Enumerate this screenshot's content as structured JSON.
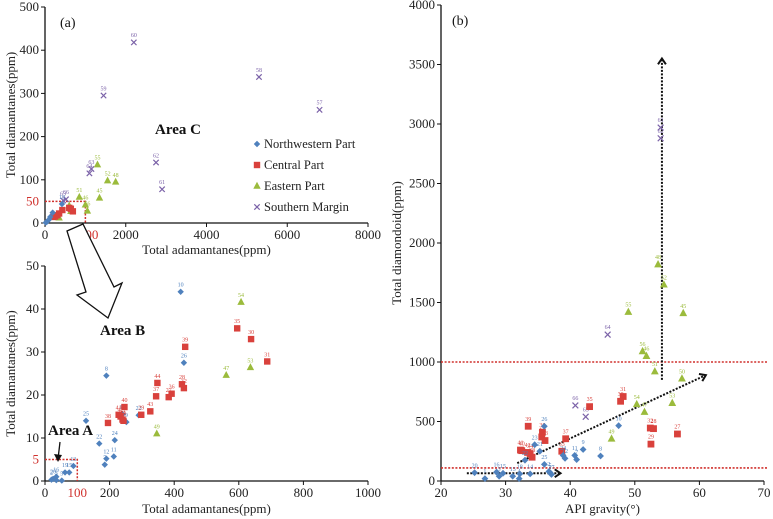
{
  "colors": {
    "northwestern": "#4f81bd",
    "central": "#d9413c",
    "eastern": "#9bbb3c",
    "southern": "#7b62a8",
    "redline": "#d0312d",
    "black": "#111111"
  },
  "legend": [
    {
      "key": "northwestern",
      "label": "Northwestern Part",
      "marker": "diamond"
    },
    {
      "key": "central",
      "label": "Central Part",
      "marker": "square"
    },
    {
      "key": "eastern",
      "label": "Eastern Part",
      "marker": "triangle"
    },
    {
      "key": "southern",
      "label": "Southern Margin",
      "marker": "cross"
    }
  ],
  "chart_data": [
    {
      "id": "a-top",
      "type": "scatter",
      "panel_label": "(a)",
      "annotation": "Area C",
      "xlabel": "Total adamantanes(ppm)",
      "ylabel": "Total diamantanes(ppm)",
      "xlim": [
        0,
        8000
      ],
      "ylim": [
        0,
        500
      ],
      "xticks": [
        0,
        2000,
        4000,
        6000,
        8000
      ],
      "yticks": [
        0,
        100,
        200,
        300,
        400,
        500
      ],
      "highlight_box": {
        "x": 1000,
        "y": 50,
        "x_label": "1000",
        "y_label": "50"
      },
      "points": [
        {
          "s": "southern",
          "x": 2200,
          "y": 418,
          "l": "60"
        },
        {
          "s": "southern",
          "x": 1450,
          "y": 295,
          "l": "59"
        },
        {
          "s": "southern",
          "x": 5300,
          "y": 338,
          "l": "58"
        },
        {
          "s": "southern",
          "x": 6800,
          "y": 262,
          "l": "57"
        },
        {
          "s": "southern",
          "x": 2750,
          "y": 140,
          "l": "62"
        },
        {
          "s": "southern",
          "x": 2900,
          "y": 78,
          "l": "61"
        },
        {
          "s": "southern",
          "x": 1150,
          "y": 125,
          "l": "63"
        },
        {
          "s": "southern",
          "x": 1100,
          "y": 115,
          "l": "64"
        },
        {
          "s": "southern",
          "x": 520,
          "y": 55,
          "l": "66"
        },
        {
          "s": "southern",
          "x": 450,
          "y": 52,
          "l": "65"
        },
        {
          "s": "eastern",
          "x": 1300,
          "y": 135,
          "l": "55"
        },
        {
          "s": "eastern",
          "x": 1550,
          "y": 98,
          "l": "52"
        },
        {
          "s": "eastern",
          "x": 1750,
          "y": 95,
          "l": "48"
        },
        {
          "s": "eastern",
          "x": 850,
          "y": 60,
          "l": "51"
        },
        {
          "s": "eastern",
          "x": 1350,
          "y": 58,
          "l": "45"
        },
        {
          "s": "eastern",
          "x": 1000,
          "y": 42,
          "l": "46"
        },
        {
          "s": "eastern",
          "x": 1050,
          "y": 28,
          "l": "56"
        },
        {
          "s": "eastern",
          "x": 600,
          "y": 40,
          "l": ""
        },
        {
          "s": "eastern",
          "x": 640,
          "y": 27,
          "l": ""
        },
        {
          "s": "eastern",
          "x": 350,
          "y": 12,
          "l": ""
        },
        {
          "s": "central",
          "x": 600,
          "y": 35,
          "l": ""
        },
        {
          "s": "central",
          "x": 640,
          "y": 33,
          "l": ""
        },
        {
          "s": "central",
          "x": 430,
          "y": 30,
          "l": ""
        },
        {
          "s": "central",
          "x": 350,
          "y": 22,
          "l": ""
        },
        {
          "s": "central",
          "x": 300,
          "y": 18,
          "l": ""
        },
        {
          "s": "central",
          "x": 250,
          "y": 15,
          "l": ""
        },
        {
          "s": "central",
          "x": 690,
          "y": 27,
          "l": ""
        },
        {
          "s": "central",
          "x": 200,
          "y": 14,
          "l": ""
        },
        {
          "s": "northwestern",
          "x": 420,
          "y": 44,
          "l": "10"
        },
        {
          "s": "northwestern",
          "x": 190,
          "y": 24,
          "l": ""
        },
        {
          "s": "northwestern",
          "x": 130,
          "y": 14,
          "l": ""
        },
        {
          "s": "northwestern",
          "x": 100,
          "y": 8,
          "l": ""
        },
        {
          "s": "northwestern",
          "x": 50,
          "y": 3,
          "l": ""
        },
        {
          "s": "northwestern",
          "x": 20,
          "y": 1,
          "l": ""
        }
      ]
    },
    {
      "id": "a-bottom",
      "type": "scatter",
      "annotations": [
        "Area B",
        "Area A"
      ],
      "xlabel": "Total adamantanes(ppm)",
      "ylabel": "Total diamantanes(ppm)",
      "xlim": [
        0,
        1000
      ],
      "ylim": [
        0,
        50
      ],
      "xticks": [
        0,
        200,
        400,
        600,
        800,
        1000
      ],
      "yticks": [
        0,
        10,
        20,
        30,
        40,
        50
      ],
      "highlight_box": {
        "x": 100,
        "y": 5,
        "x_label": "100",
        "y_label": "5"
      },
      "points": [
        {
          "s": "northwestern",
          "x": 420,
          "y": 44,
          "l": "10"
        },
        {
          "s": "northwestern",
          "x": 190,
          "y": 24.5,
          "l": "8"
        },
        {
          "s": "northwestern",
          "x": 430,
          "y": 27.5,
          "l": "26"
        },
        {
          "s": "northwestern",
          "x": 127,
          "y": 14,
          "l": "25"
        },
        {
          "s": "northwestern",
          "x": 290,
          "y": 15.3,
          "l": "23"
        },
        {
          "s": "northwestern",
          "x": 240,
          "y": 15.5,
          "l": "17"
        },
        {
          "s": "northwestern",
          "x": 252,
          "y": 13.7,
          "l": "9"
        },
        {
          "s": "northwestern",
          "x": 168,
          "y": 8.7,
          "l": "22"
        },
        {
          "s": "northwestern",
          "x": 216,
          "y": 9.5,
          "l": "24"
        },
        {
          "s": "northwestern",
          "x": 190,
          "y": 5.2,
          "l": "12"
        },
        {
          "s": "northwestern",
          "x": 213,
          "y": 5.7,
          "l": "11"
        },
        {
          "s": "northwestern",
          "x": 185,
          "y": 3.8,
          "l": "7"
        },
        {
          "s": "northwestern",
          "x": 88,
          "y": 3.5,
          "l": "13"
        },
        {
          "s": "northwestern",
          "x": 62,
          "y": 2,
          "l": "19"
        },
        {
          "s": "northwestern",
          "x": 75,
          "y": 2,
          "l": "15"
        },
        {
          "s": "northwestern",
          "x": 35,
          "y": 1,
          "l": "16"
        },
        {
          "s": "northwestern",
          "x": 25,
          "y": 0.5,
          "l": "20"
        },
        {
          "s": "northwestern",
          "x": 20,
          "y": 0.3,
          "l": "2"
        },
        {
          "s": "northwestern",
          "x": 35,
          "y": 0.2,
          "l": "3"
        },
        {
          "s": "northwestern",
          "x": 52,
          "y": 0.1,
          "l": "5"
        },
        {
          "s": "central",
          "x": 595,
          "y": 35.5,
          "l": "35"
        },
        {
          "s": "central",
          "x": 638,
          "y": 33,
          "l": "30"
        },
        {
          "s": "central",
          "x": 434,
          "y": 31.2,
          "l": "39"
        },
        {
          "s": "central",
          "x": 688,
          "y": 27.8,
          "l": "31"
        },
        {
          "s": "central",
          "x": 348,
          "y": 22.8,
          "l": "44"
        },
        {
          "s": "central",
          "x": 424,
          "y": 22.5,
          "l": "28"
        },
        {
          "s": "central",
          "x": 430,
          "y": 21.6,
          "l": "32"
        },
        {
          "s": "central",
          "x": 392,
          "y": 20.3,
          "l": "36"
        },
        {
          "s": "central",
          "x": 344,
          "y": 19.7,
          "l": "37"
        },
        {
          "s": "central",
          "x": 383,
          "y": 19.5,
          "l": "27"
        },
        {
          "s": "central",
          "x": 246,
          "y": 17.2,
          "l": "40"
        },
        {
          "s": "central",
          "x": 228,
          "y": 15.4,
          "l": "41"
        },
        {
          "s": "central",
          "x": 234,
          "y": 15,
          "l": "42"
        },
        {
          "s": "central",
          "x": 326,
          "y": 16.2,
          "l": "43"
        },
        {
          "s": "central",
          "x": 298,
          "y": 15.4,
          "l": "29"
        },
        {
          "s": "central",
          "x": 240,
          "y": 14.3,
          "l": "34"
        },
        {
          "s": "central",
          "x": 243,
          "y": 14,
          "l": "33"
        },
        {
          "s": "central",
          "x": 195,
          "y": 13.5,
          "l": "38"
        },
        {
          "s": "eastern",
          "x": 607,
          "y": 41.6,
          "l": "54"
        },
        {
          "s": "eastern",
          "x": 561,
          "y": 24.6,
          "l": "47"
        },
        {
          "s": "eastern",
          "x": 636,
          "y": 26.4,
          "l": "53"
        },
        {
          "s": "eastern",
          "x": 346,
          "y": 11,
          "l": "49"
        }
      ]
    },
    {
      "id": "b",
      "type": "scatter",
      "panel_label": "(b)",
      "xlabel": "API gravity(°)",
      "ylabel": "Total diamondoid(ppm)",
      "xlim": [
        20,
        70
      ],
      "ylim": [
        0,
        4000
      ],
      "xticks": [
        20,
        30,
        40,
        50,
        60,
        70
      ],
      "yticks": [
        0,
        500,
        1000,
        1500,
        2000,
        2500,
        3000,
        3500,
        4000
      ],
      "threshold_lines": [
        1000,
        110
      ],
      "points": [
        {
          "s": "southern",
          "x": 54,
          "y": 2970,
          "l": "61"
        },
        {
          "s": "southern",
          "x": 54,
          "y": 2880,
          "l": "62"
        },
        {
          "s": "southern",
          "x": 45.8,
          "y": 1230,
          "l": "64"
        },
        {
          "s": "southern",
          "x": 40.8,
          "y": 635,
          "l": "66"
        },
        {
          "s": "southern",
          "x": 42.4,
          "y": 540,
          "l": "65"
        },
        {
          "s": "eastern",
          "x": 53.6,
          "y": 1820,
          "l": "48"
        },
        {
          "s": "eastern",
          "x": 54.5,
          "y": 1650,
          "l": "52"
        },
        {
          "s": "eastern",
          "x": 49,
          "y": 1420,
          "l": "55"
        },
        {
          "s": "eastern",
          "x": 57.5,
          "y": 1410,
          "l": "45"
        },
        {
          "s": "eastern",
          "x": 51.2,
          "y": 1090,
          "l": "56"
        },
        {
          "s": "eastern",
          "x": 51.8,
          "y": 1050,
          "l": "46"
        },
        {
          "s": "eastern",
          "x": 53.1,
          "y": 920,
          "l": "51"
        },
        {
          "s": "eastern",
          "x": 57.3,
          "y": 860,
          "l": "50"
        },
        {
          "s": "eastern",
          "x": 50.3,
          "y": 645,
          "l": "54"
        },
        {
          "s": "eastern",
          "x": 55.8,
          "y": 655,
          "l": "53"
        },
        {
          "s": "eastern",
          "x": 51.5,
          "y": 580,
          "l": "47"
        },
        {
          "s": "eastern",
          "x": 46.4,
          "y": 355,
          "l": "49"
        },
        {
          "s": "central",
          "x": 48.2,
          "y": 710,
          "l": "31"
        },
        {
          "s": "central",
          "x": 47.8,
          "y": 670,
          "l": "30"
        },
        {
          "s": "central",
          "x": 43,
          "y": 625,
          "l": "35"
        },
        {
          "s": "central",
          "x": 52.4,
          "y": 445,
          "l": "32"
        },
        {
          "s": "central",
          "x": 52.9,
          "y": 440,
          "l": "28"
        },
        {
          "s": "central",
          "x": 56.6,
          "y": 395,
          "l": "27"
        },
        {
          "s": "central",
          "x": 52.5,
          "y": 310,
          "l": "29"
        },
        {
          "s": "central",
          "x": 33.5,
          "y": 460,
          "l": "39"
        },
        {
          "s": "central",
          "x": 35.7,
          "y": 410,
          "l": "36"
        },
        {
          "s": "central",
          "x": 35.6,
          "y": 370,
          "l": "44"
        },
        {
          "s": "central",
          "x": 36.1,
          "y": 340,
          "l": "43"
        },
        {
          "s": "central",
          "x": 39.3,
          "y": 355,
          "l": "37"
        },
        {
          "s": "central",
          "x": 38.7,
          "y": 250,
          "l": "33"
        },
        {
          "s": "central",
          "x": 32.3,
          "y": 260,
          "l": "41"
        },
        {
          "s": "central",
          "x": 32.5,
          "y": 255,
          "l": "40"
        },
        {
          "s": "central",
          "x": 33.4,
          "y": 240,
          "l": "42"
        },
        {
          "s": "central",
          "x": 33.8,
          "y": 230,
          "l": "34"
        },
        {
          "s": "central",
          "x": 34.1,
          "y": 200,
          "l": "38"
        },
        {
          "s": "northwestern",
          "x": 47.5,
          "y": 465,
          "l": "10"
        },
        {
          "s": "northwestern",
          "x": 36,
          "y": 460,
          "l": "26"
        },
        {
          "s": "northwestern",
          "x": 34.5,
          "y": 305,
          "l": "23"
        },
        {
          "s": "northwestern",
          "x": 35.3,
          "y": 250,
          "l": "21"
        },
        {
          "s": "northwestern",
          "x": 42,
          "y": 265,
          "l": "9"
        },
        {
          "s": "northwestern",
          "x": 40.7,
          "y": 215,
          "l": "11"
        },
        {
          "s": "northwestern",
          "x": 41,
          "y": 180,
          "l": "7"
        },
        {
          "s": "northwestern",
          "x": 39.2,
          "y": 190,
          "l": "12"
        },
        {
          "s": "northwestern",
          "x": 38.9,
          "y": 215,
          "l": "24"
        },
        {
          "s": "northwestern",
          "x": 44.7,
          "y": 210,
          "l": "8"
        },
        {
          "s": "northwestern",
          "x": 33,
          "y": 175,
          "l": "22"
        },
        {
          "s": "northwestern",
          "x": 36,
          "y": 140,
          "l": "25"
        },
        {
          "s": "northwestern",
          "x": 25.2,
          "y": 70,
          "l": "20"
        },
        {
          "s": "northwestern",
          "x": 28.6,
          "y": 75,
          "l": "16"
        },
        {
          "s": "northwestern",
          "x": 29.6,
          "y": 65,
          "l": "15"
        },
        {
          "s": "northwestern",
          "x": 26.8,
          "y": 20,
          "l": "1"
        },
        {
          "s": "northwestern",
          "x": 29,
          "y": 40,
          "l": "3"
        },
        {
          "s": "northwestern",
          "x": 31.1,
          "y": 40,
          "l": "13"
        },
        {
          "s": "northwestern",
          "x": 32.2,
          "y": 60,
          "l": "18"
        },
        {
          "s": "northwestern",
          "x": 32.1,
          "y": 20,
          "l": "4"
        },
        {
          "s": "northwestern",
          "x": 33.8,
          "y": 60,
          "l": "14"
        },
        {
          "s": "northwestern",
          "x": 36.9,
          "y": 70,
          "l": "5"
        },
        {
          "s": "northwestern",
          "x": 37.1,
          "y": 55,
          "l": "17"
        },
        {
          "s": "northwestern",
          "x": 36.7,
          "y": 80,
          "l": "2"
        }
      ],
      "arrows": [
        {
          "from": [
            54.2,
            850
          ],
          "to": [
            54.2,
            3550
          ],
          "style": "dotted"
        },
        {
          "from": [
            31.8,
            150
          ],
          "to": [
            61,
            890
          ],
          "style": "dotted"
        },
        {
          "from": [
            24,
            65
          ],
          "to": [
            38.5,
            65
          ],
          "style": "dotted"
        }
      ]
    }
  ]
}
